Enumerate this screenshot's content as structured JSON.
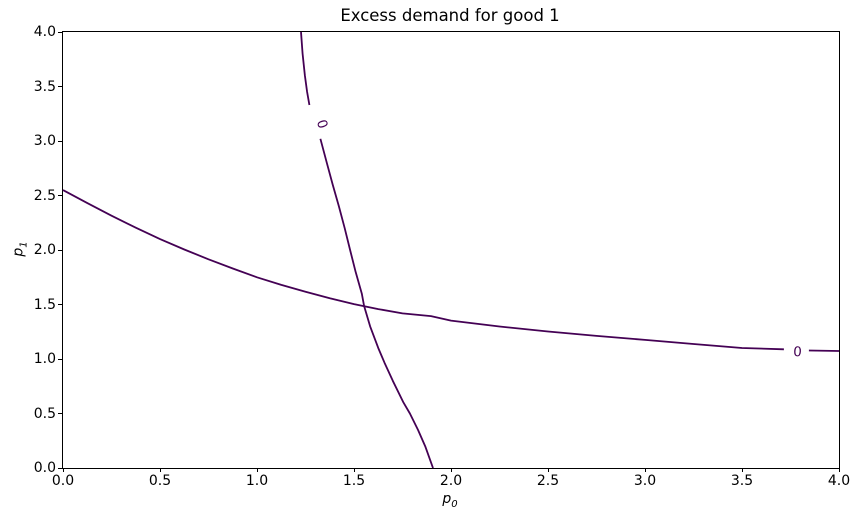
{
  "figure": {
    "background": "#ffffff",
    "text_color": "#000000"
  },
  "chart_data": {
    "type": "line",
    "subtype": "contour-zero-level-curves",
    "title": "Excess demand for good 1",
    "xlabel": {
      "letter": "p",
      "subscript": "0"
    },
    "ylabel": {
      "letter": "p",
      "subscript": "1"
    },
    "xlim": [
      0,
      4
    ],
    "ylim": [
      0,
      4
    ],
    "grid": false,
    "legend": null,
    "line_color": "#440154",
    "axis_color": "#000000",
    "xticks": {
      "values": [
        0,
        0.5,
        1,
        1.5,
        2,
        2.5,
        3,
        3.5,
        4
      ],
      "labels": [
        "0.0",
        "0.5",
        "1.0",
        "1.5",
        "2.0",
        "2.5",
        "3.0",
        "3.5",
        "4.0"
      ]
    },
    "yticks": {
      "values": [
        0,
        0.5,
        1,
        1.5,
        2,
        2.5,
        3,
        3.5,
        4
      ],
      "labels": [
        "0.0",
        "0.5",
        "1.0",
        "1.5",
        "2.0",
        "2.5",
        "3.0",
        "3.5",
        "4.0"
      ]
    },
    "series": [
      {
        "name": "zero-contour-steep",
        "label": "0",
        "label_at": {
          "x": 1.338,
          "y": 3.156,
          "rotation_deg": 72
        },
        "segments": [
          [
            [
              1.227,
              4.0
            ],
            [
              1.235,
              3.8
            ],
            [
              1.247,
              3.6
            ],
            [
              1.258,
              3.45
            ],
            [
              1.27,
              3.33
            ]
          ],
          [
            [
              1.327,
              3.02
            ],
            [
              1.36,
              2.8
            ],
            [
              1.39,
              2.6
            ],
            [
              1.422,
              2.4
            ],
            [
              1.452,
              2.2
            ],
            [
              1.48,
              2.0
            ],
            [
              1.508,
              1.8
            ],
            [
              1.54,
              1.6
            ],
            [
              1.552,
              1.486
            ],
            [
              1.583,
              1.3
            ],
            [
              1.625,
              1.1
            ],
            [
              1.657,
              0.966
            ],
            [
              1.7,
              0.8
            ],
            [
              1.755,
              0.6
            ],
            [
              1.788,
              0.5
            ],
            [
              1.83,
              0.35
            ],
            [
              1.867,
              0.2
            ],
            [
              1.907,
              0.0
            ]
          ]
        ]
      },
      {
        "name": "zero-contour-flat",
        "label": "0",
        "label_at": {
          "x": 3.786,
          "y": 1.07,
          "rotation_deg": 3
        },
        "segments": [
          [
            [
              0,
              2.55
            ],
            [
              0.125,
              2.43
            ],
            [
              0.25,
              2.315
            ],
            [
              0.375,
              2.205
            ],
            [
              0.5,
              2.1
            ],
            [
              0.625,
              2.005
            ],
            [
              0.75,
              1.915
            ],
            [
              0.875,
              1.83
            ],
            [
              1.0,
              1.75
            ],
            [
              1.125,
              1.68
            ],
            [
              1.25,
              1.617
            ],
            [
              1.375,
              1.558
            ],
            [
              1.5,
              1.504
            ],
            [
              1.625,
              1.458
            ],
            [
              1.75,
              1.418
            ],
            [
              1.897,
              1.394
            ],
            [
              2.0,
              1.352
            ],
            [
              2.25,
              1.298
            ],
            [
              2.5,
              1.252
            ],
            [
              2.75,
              1.212
            ],
            [
              3.0,
              1.175
            ],
            [
              3.25,
              1.138
            ],
            [
              3.5,
              1.101
            ],
            [
              3.716,
              1.089
            ]
          ],
          [
            [
              3.845,
              1.078
            ],
            [
              4.0,
              1.073
            ]
          ]
        ]
      }
    ]
  }
}
